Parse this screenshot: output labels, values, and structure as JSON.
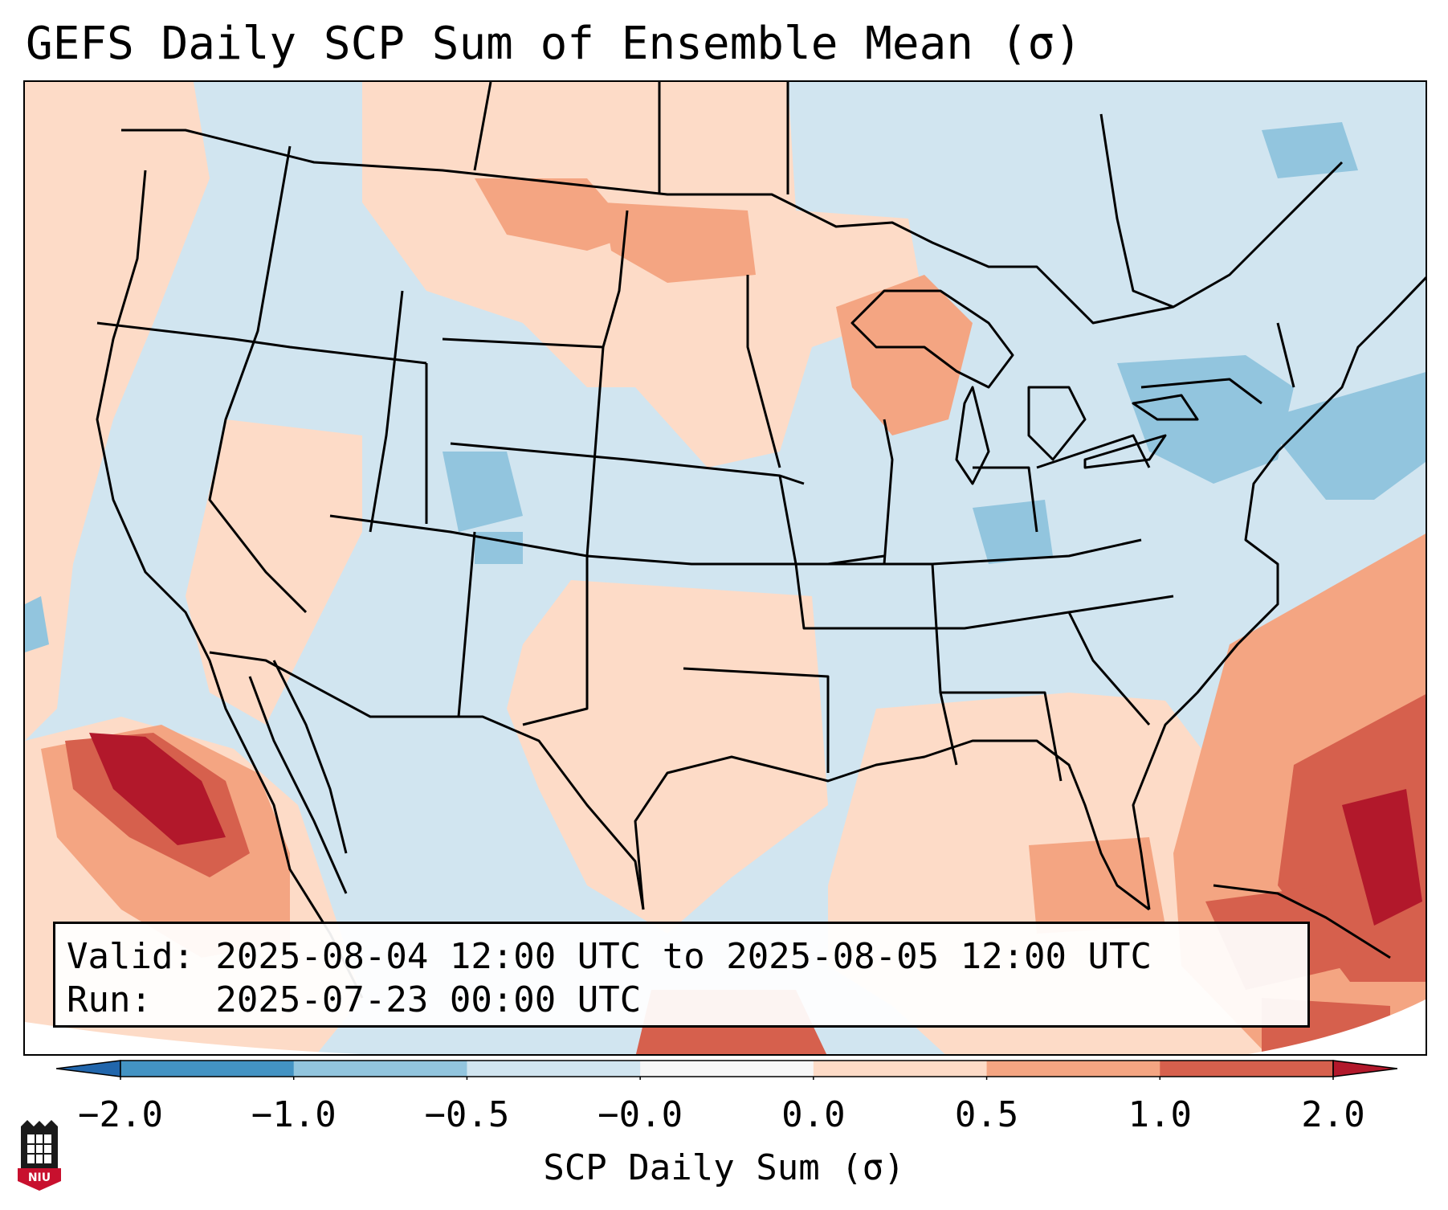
{
  "title": "GEFS Daily SCP Sum of Ensemble Mean (σ)",
  "info": {
    "valid_line": "Valid: 2025-08-04 12:00 UTC to 2025-08-05 12:00 UTC",
    "run_line": "Run:   2025-07-23 00:00 UTC"
  },
  "colorbar": {
    "label": "SCP Daily Sum (σ)",
    "ticks": [
      "−2.0",
      "−1.0",
      "−0.5",
      "−0.0",
      "0.0",
      "0.5",
      "1.0",
      "2.0"
    ],
    "bins": [
      {
        "range": "< -2.0",
        "color": "#2166ac"
      },
      {
        "range": "-2.0 to -1.0",
        "color": "#4393c3"
      },
      {
        "range": "-1.0 to -0.5",
        "color": "#92c5de"
      },
      {
        "range": "-0.5 to -0.0",
        "color": "#d1e5f0"
      },
      {
        "range": "-0.0 to 0.0",
        "color": "#f7f7f7"
      },
      {
        "range": "0.0 to 0.5",
        "color": "#fddbc7"
      },
      {
        "range": "0.5 to 1.0",
        "color": "#f4a582"
      },
      {
        "range": "1.0 to 2.0",
        "color": "#d6604d"
      },
      {
        "range": "> 2.0",
        "color": "#b2182b"
      }
    ]
  },
  "logo": {
    "text": "NIU",
    "color": "#c8102e"
  },
  "icons": {
    "logo": "niu-logo-icon"
  }
}
